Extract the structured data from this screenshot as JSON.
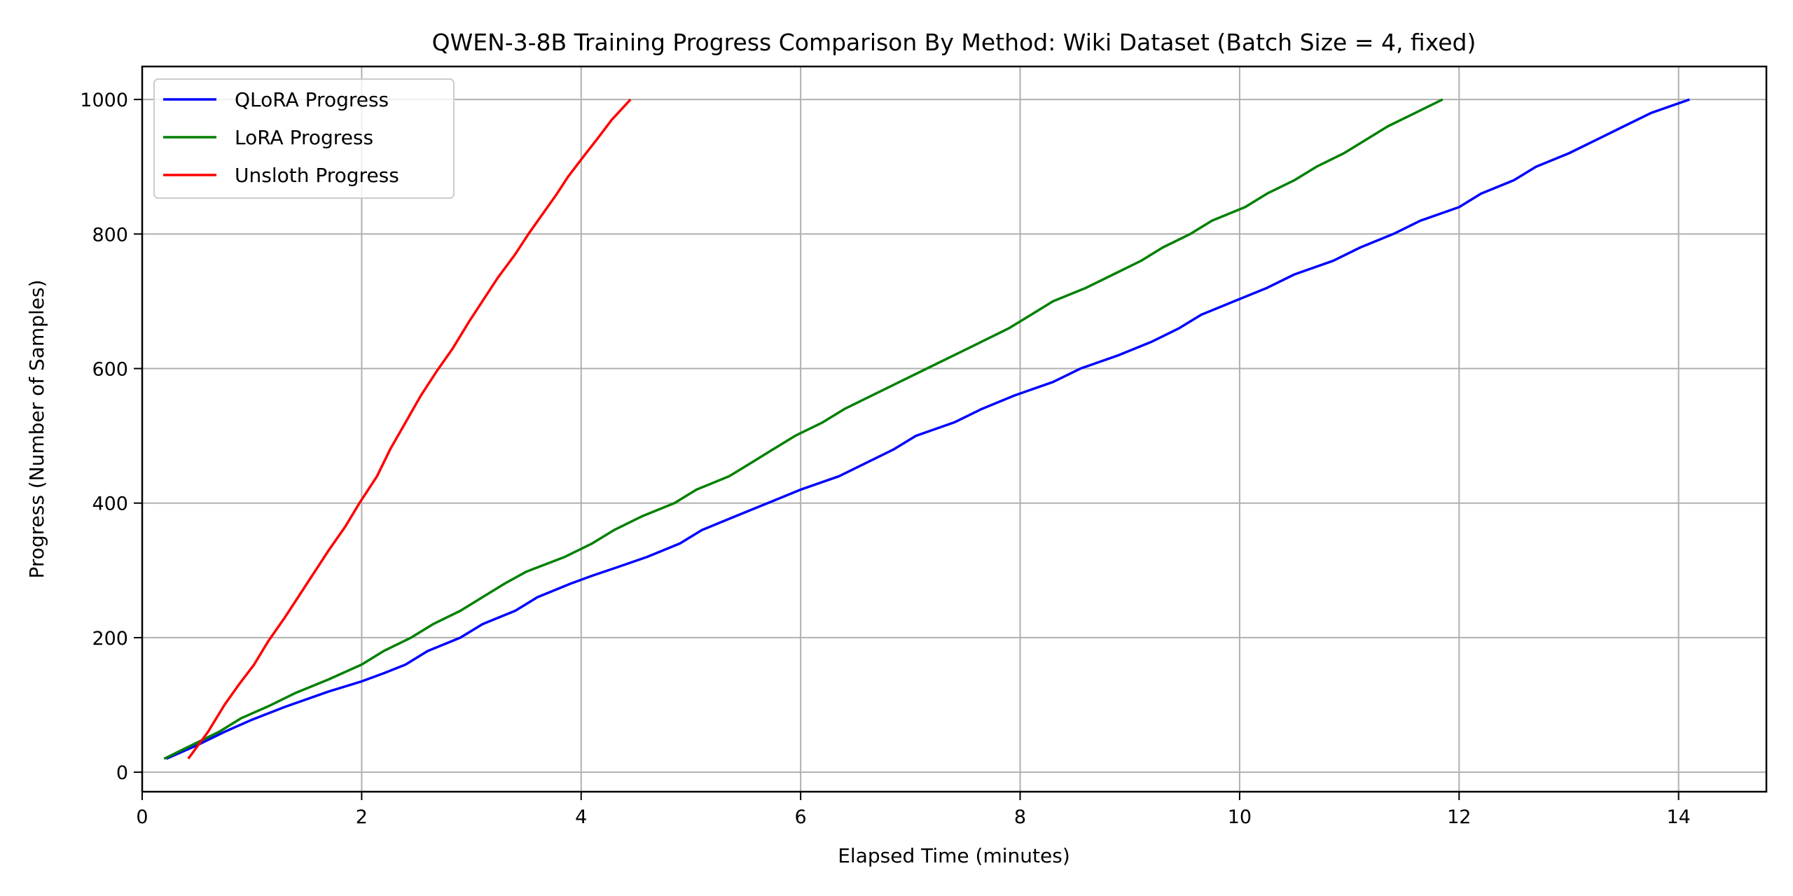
{
  "chart_data": {
    "type": "line",
    "title": "QWEN-3-8B Training Progress Comparison By Method: Wiki Dataset (Batch Size = 4, fixed)",
    "xlabel": "Elapsed Time (minutes)",
    "ylabel": "Progress (Number of Samples)",
    "xlim": [
      0,
      14.8
    ],
    "ylim": [
      -29,
      1049
    ],
    "xticks": [
      0,
      2,
      4,
      6,
      8,
      10,
      12,
      14
    ],
    "yticks": [
      0,
      200,
      400,
      600,
      800,
      1000
    ],
    "grid": true,
    "legend_position": "upper-left",
    "series": [
      {
        "name": "QLoRA Progress",
        "color": "#0000ff",
        "x": [
          0.22,
          0.5,
          0.75,
          1.0,
          1.3,
          1.7,
          2.0,
          2.2,
          2.4,
          2.6,
          2.9,
          3.1,
          3.4,
          3.6,
          3.9,
          4.1,
          4.3,
          4.6,
          4.9,
          5.1,
          5.4,
          5.7,
          6.0,
          6.35,
          6.6,
          6.85,
          7.05,
          7.4,
          7.65,
          7.95,
          8.3,
          8.55,
          8.9,
          9.2,
          9.45,
          9.65,
          9.95,
          10.25,
          10.5,
          10.85,
          11.1,
          11.4,
          11.65,
          12.0,
          12.2,
          12.5,
          12.7,
          13.0,
          13.25,
          13.5,
          13.75,
          14.1
        ],
        "y": [
          20,
          40,
          60,
          78,
          97,
          120,
          135,
          147,
          160,
          180,
          200,
          220,
          240,
          260,
          280,
          292,
          303,
          320,
          340,
          360,
          380,
          400,
          420,
          440,
          460,
          480,
          500,
          520,
          540,
          560,
          580,
          600,
          620,
          640,
          660,
          680,
          700,
          720,
          740,
          760,
          780,
          800,
          820,
          840,
          860,
          880,
          900,
          920,
          940,
          960,
          980,
          1000
        ]
      },
      {
        "name": "LoRA Progress",
        "color": "#008000",
        "x": [
          0.2,
          0.45,
          0.7,
          0.9,
          1.15,
          1.4,
          1.7,
          2.0,
          2.2,
          2.45,
          2.65,
          2.9,
          3.1,
          3.3,
          3.5,
          3.85,
          4.1,
          4.3,
          4.55,
          4.85,
          5.05,
          5.35,
          5.55,
          5.75,
          5.95,
          6.2,
          6.4,
          6.65,
          6.9,
          7.15,
          7.4,
          7.65,
          7.9,
          8.1,
          8.3,
          8.6,
          8.85,
          9.1,
          9.3,
          9.55,
          9.75,
          10.05,
          10.25,
          10.5,
          10.7,
          10.95,
          11.15,
          11.35,
          11.6,
          11.85
        ],
        "y": [
          20,
          40,
          60,
          80,
          98,
          118,
          138,
          160,
          180,
          200,
          220,
          240,
          260,
          280,
          298,
          320,
          340,
          360,
          380,
          400,
          420,
          440,
          460,
          480,
          500,
          520,
          540,
          560,
          580,
          600,
          620,
          640,
          660,
          680,
          700,
          720,
          740,
          760,
          780,
          800,
          820,
          840,
          860,
          880,
          900,
          920,
          940,
          960,
          980,
          1000
        ]
      },
      {
        "name": "Unsloth Progress",
        "color": "#ff0000",
        "x": [
          0.42,
          0.6,
          0.75,
          0.88,
          1.02,
          1.15,
          1.3,
          1.44,
          1.58,
          1.7,
          1.85,
          1.98,
          2.14,
          2.26,
          2.4,
          2.54,
          2.68,
          2.83,
          2.98,
          3.1,
          3.24,
          3.4,
          3.52,
          3.65,
          3.78,
          3.88,
          4.02,
          4.14,
          4.28,
          4.45
        ],
        "y": [
          20,
          60,
          100,
          130,
          160,
          195,
          230,
          265,
          300,
          330,
          365,
          400,
          440,
          480,
          520,
          560,
          595,
          630,
          670,
          700,
          735,
          770,
          800,
          830,
          860,
          885,
          915,
          940,
          970,
          1000
        ]
      }
    ]
  }
}
